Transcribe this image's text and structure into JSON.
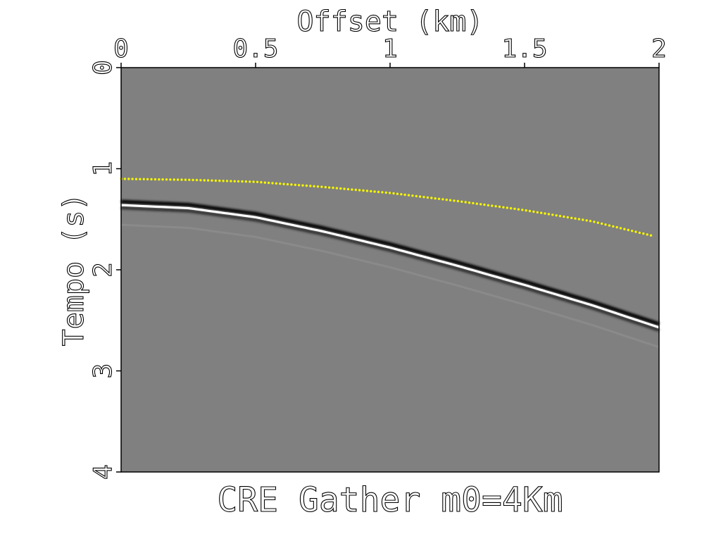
{
  "chart_data": {
    "type": "seismic-gather",
    "title": "CRE Gather m0=4Km",
    "xlabel": "Offset (km)",
    "ylabel": "Tempo (s)",
    "xlim": [
      0,
      2
    ],
    "ylim": [
      4,
      0
    ],
    "x_ticks": [
      "0",
      "0.5",
      "1",
      "1.5",
      "2"
    ],
    "x_tick_values": [
      0,
      0.5,
      1,
      1.5,
      2
    ],
    "y_ticks": [
      "0",
      "1",
      "2",
      "3",
      "4"
    ],
    "y_tick_values": [
      0,
      1,
      2,
      3,
      4
    ],
    "background_color": "#808080",
    "series": [
      {
        "name": "picked-traveltime",
        "style": "dotted",
        "color": "#f5f500",
        "x": [
          0,
          0.25,
          0.5,
          0.75,
          1.0,
          1.25,
          1.5,
          1.75,
          1.97
        ],
        "y": [
          1.1,
          1.11,
          1.13,
          1.18,
          1.24,
          1.32,
          1.41,
          1.52,
          1.66
        ]
      },
      {
        "name": "reflection-event",
        "style": "wavelet",
        "color": "#ffffff",
        "x": [
          0,
          0.25,
          0.5,
          0.75,
          1.0,
          1.25,
          1.5,
          1.75,
          2.0
        ],
        "y": [
          1.36,
          1.39,
          1.48,
          1.62,
          1.78,
          1.96,
          2.15,
          2.35,
          2.57
        ]
      }
    ]
  }
}
